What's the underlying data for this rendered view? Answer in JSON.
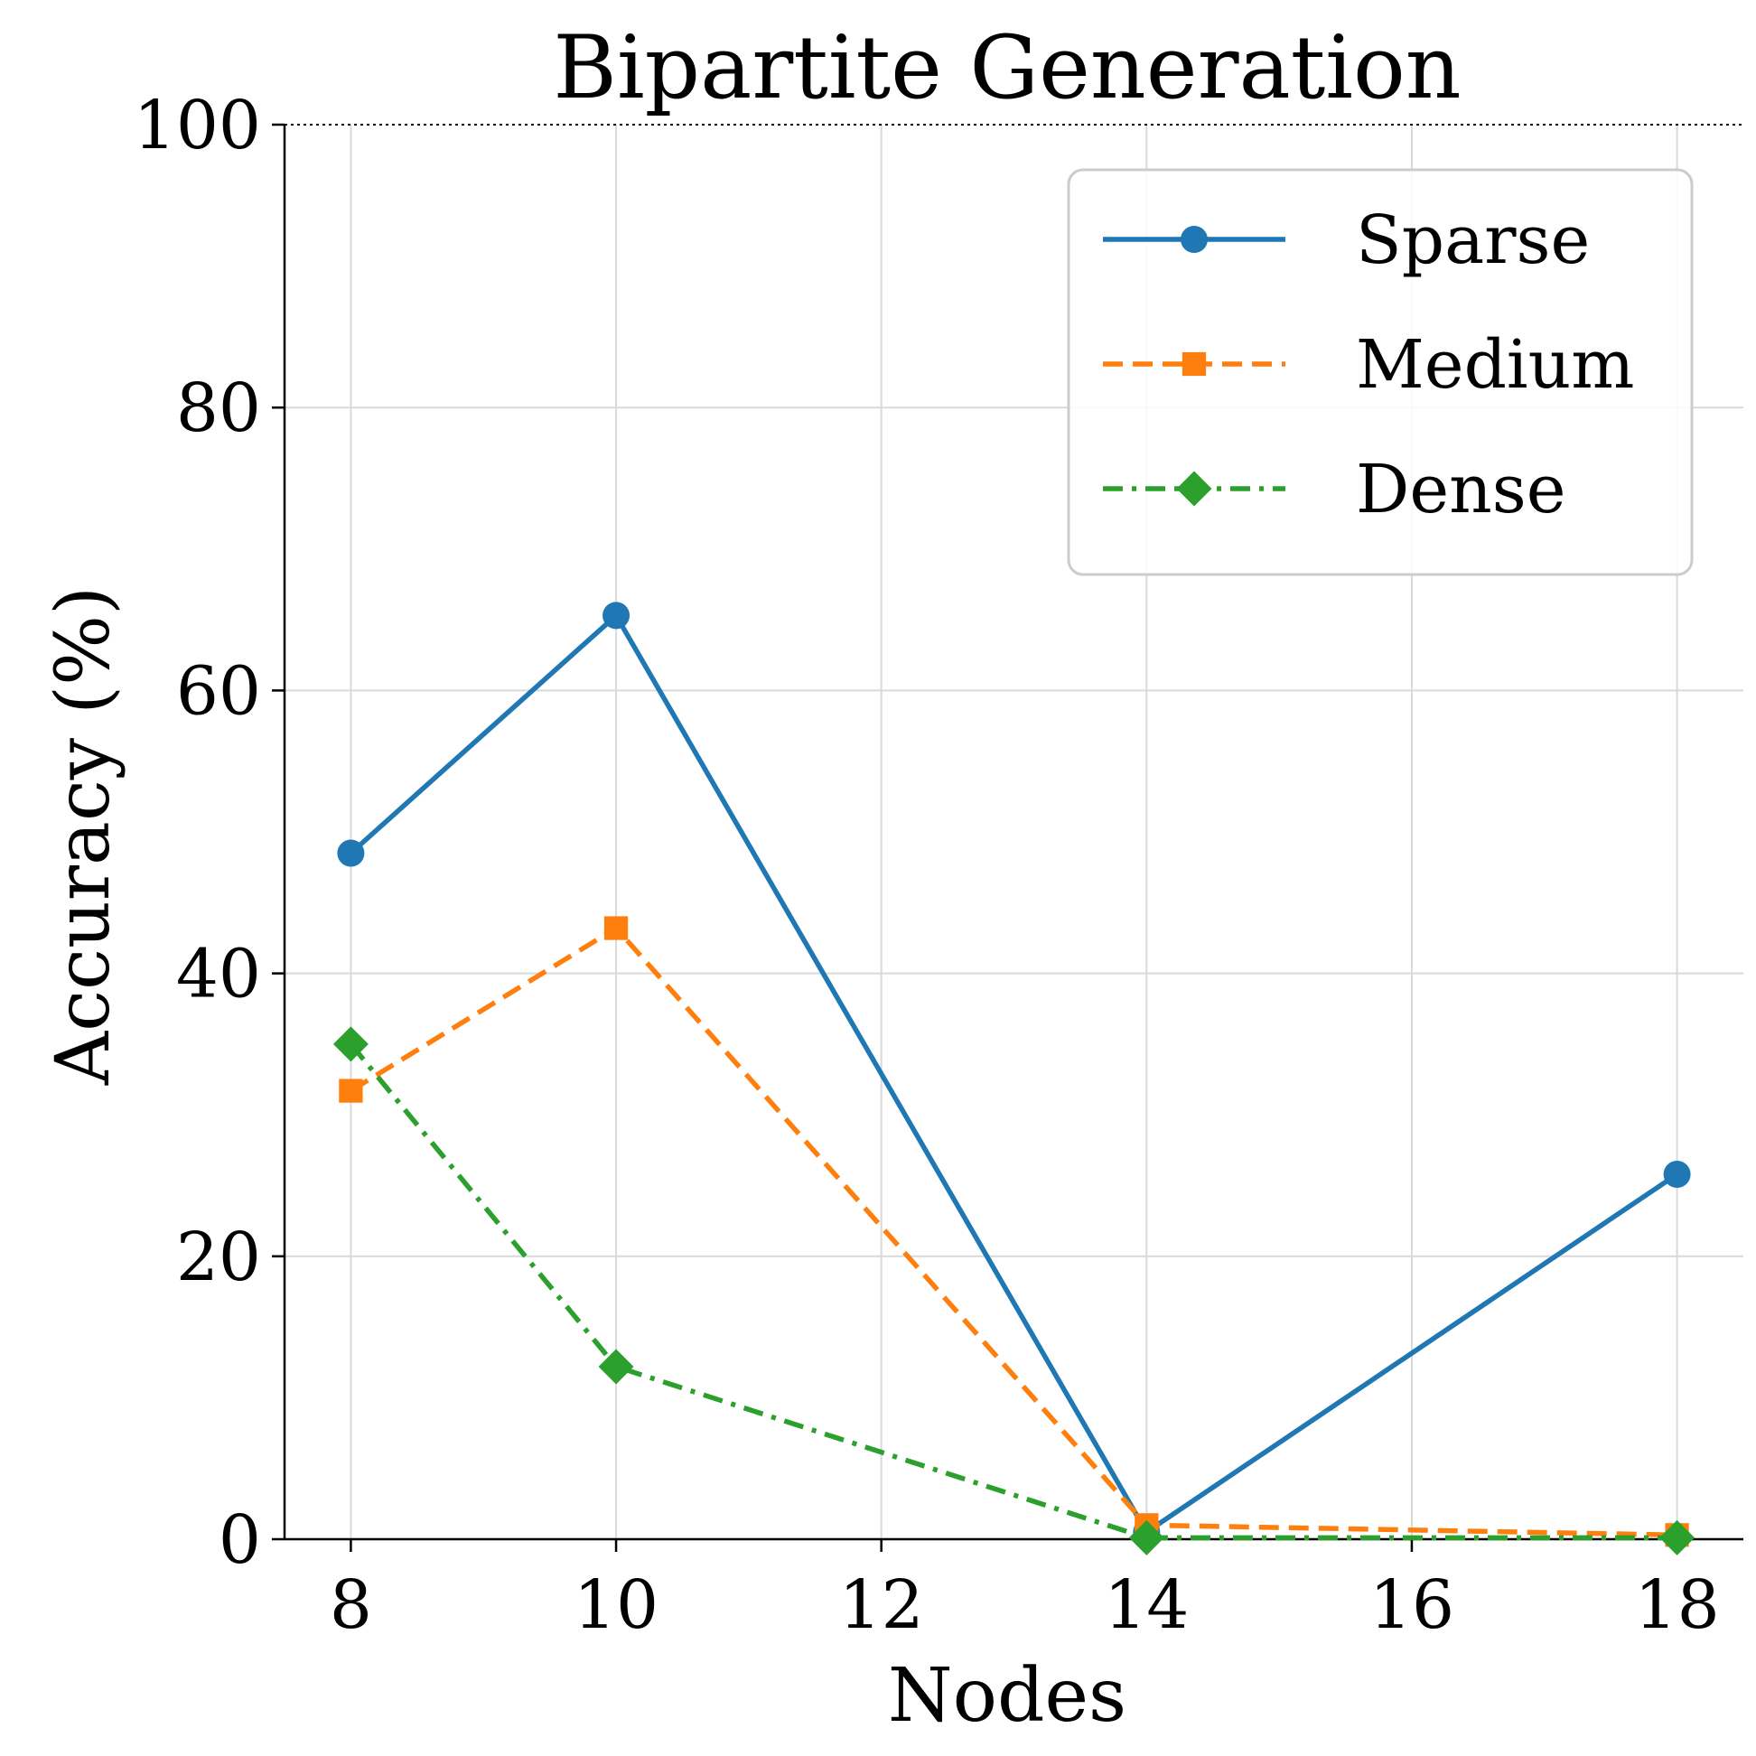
{
  "chart_data": {
    "type": "line",
    "title": "Bipartite Generation",
    "xlabel": "Nodes",
    "ylabel": "Accuracy (%)",
    "x": [
      8,
      10,
      14,
      18
    ],
    "xticks": [
      "8",
      "10",
      "12",
      "14",
      "16",
      "18"
    ],
    "yticks": [
      "0",
      "20",
      "40",
      "60",
      "80",
      "100"
    ],
    "xlim": [
      7.5,
      18.5
    ],
    "ylim": [
      0,
      100
    ],
    "grid": true,
    "reference_line": {
      "y": 100,
      "style": "dotted"
    },
    "legend_position": "top-right",
    "series": [
      {
        "name": "Sparse",
        "values": [
          48.5,
          65.3,
          0.5,
          25.8
        ],
        "color": "#1f77b4",
        "marker": "circle",
        "linestyle": "solid"
      },
      {
        "name": "Medium",
        "values": [
          31.7,
          43.2,
          1.0,
          0.3
        ],
        "color": "#ff7f0e",
        "marker": "square",
        "linestyle": "dashed"
      },
      {
        "name": "Dense",
        "values": [
          35.0,
          12.2,
          0.1,
          0.1
        ],
        "color": "#2ca02c",
        "marker": "diamond",
        "linestyle": "dashdot"
      }
    ]
  }
}
